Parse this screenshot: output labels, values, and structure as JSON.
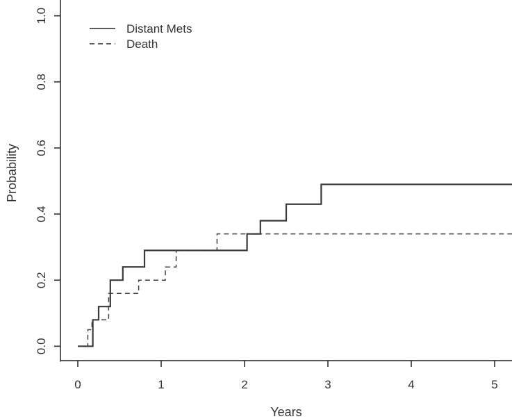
{
  "figure": {
    "background": "#ffffff",
    "text_color": "#333333",
    "axis_color": "#3d3d3d",
    "solid_curve_color": "#3a3a3a",
    "dashed_curve_color": "#3f3f3f",
    "legend_sample_color": "#5a5a5a"
  },
  "legend": {
    "box": false,
    "position": "top-left",
    "items": [
      {
        "label": "Distant Mets",
        "line_style": "solid"
      },
      {
        "label": "Death",
        "line_style": "dashed"
      }
    ]
  },
  "chart_data": {
    "type": "line",
    "subtype": "step-survival-cumulative-incidence",
    "title": "",
    "xlabel": "Years",
    "ylabel": "Probability",
    "xlim": [
      0,
      5.21
    ],
    "ylim": [
      0,
      1.0
    ],
    "grid": false,
    "legend_position": "top-left",
    "x_tick_values": [
      0,
      1,
      2,
      3,
      4,
      5
    ],
    "x_tick_labels": [
      "0",
      "1",
      "2",
      "3",
      "4",
      "5"
    ],
    "y_tick_values": [
      0.0,
      0.2,
      0.4,
      0.6,
      0.8,
      1.0
    ],
    "y_tick_labels": [
      "0.0",
      "0.2",
      "0.4",
      "0.6",
      "0.8",
      "1.0"
    ],
    "series": [
      {
        "name": "Distant Mets",
        "style": "solid",
        "step_times": [
          0,
          0.18,
          0.25,
          0.39,
          0.54,
          0.8,
          2.03,
          2.19,
          2.5,
          2.92
        ],
        "step_probs": [
          0,
          0.08,
          0.12,
          0.2,
          0.24,
          0.29,
          0.34,
          0.38,
          0.43,
          0.49
        ],
        "end_time": 5.21,
        "final_prob": 0.49
      },
      {
        "name": "Death",
        "style": "dashed",
        "step_times": [
          0,
          0.12,
          0.17,
          0.37,
          0.73,
          1.05,
          1.18,
          1.67
        ],
        "step_probs": [
          0,
          0.05,
          0.08,
          0.16,
          0.2,
          0.24,
          0.29,
          0.34
        ],
        "end_time": 5.21,
        "final_prob": 0.34
      }
    ]
  }
}
